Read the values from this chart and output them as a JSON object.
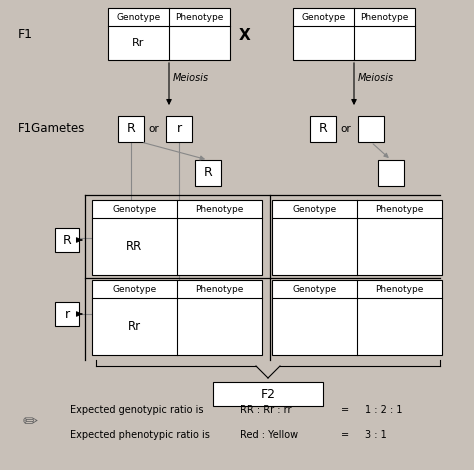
{
  "bg_color": "#c8c0b8",
  "white": "#ffffff",
  "black": "#000000",
  "f1_label": "F1",
  "x_label": "X",
  "gametes_label": "F1Gametes",
  "meiosis_label": "Meiosis",
  "f2_label": "F2",
  "genotype_label": "Genotype",
  "phenotype_label": "Phenotype",
  "rr_text": "Rr",
  "RR_text": "RR",
  "Rr_text": "Rr",
  "R_text": "R",
  "r_text": "r",
  "or_text": "or",
  "ratio1_left": "Expected genotypic ratio is",
  "ratio1_mid": "RR : Rr : rr",
  "ratio1_eq": "=",
  "ratio1_right": "1 : 2 : 1",
  "ratio2_left": "Expected phenotypic ratio is",
  "ratio2_mid": "Red : Yellow",
  "ratio2_eq": "=",
  "ratio2_right": "3 : 1"
}
